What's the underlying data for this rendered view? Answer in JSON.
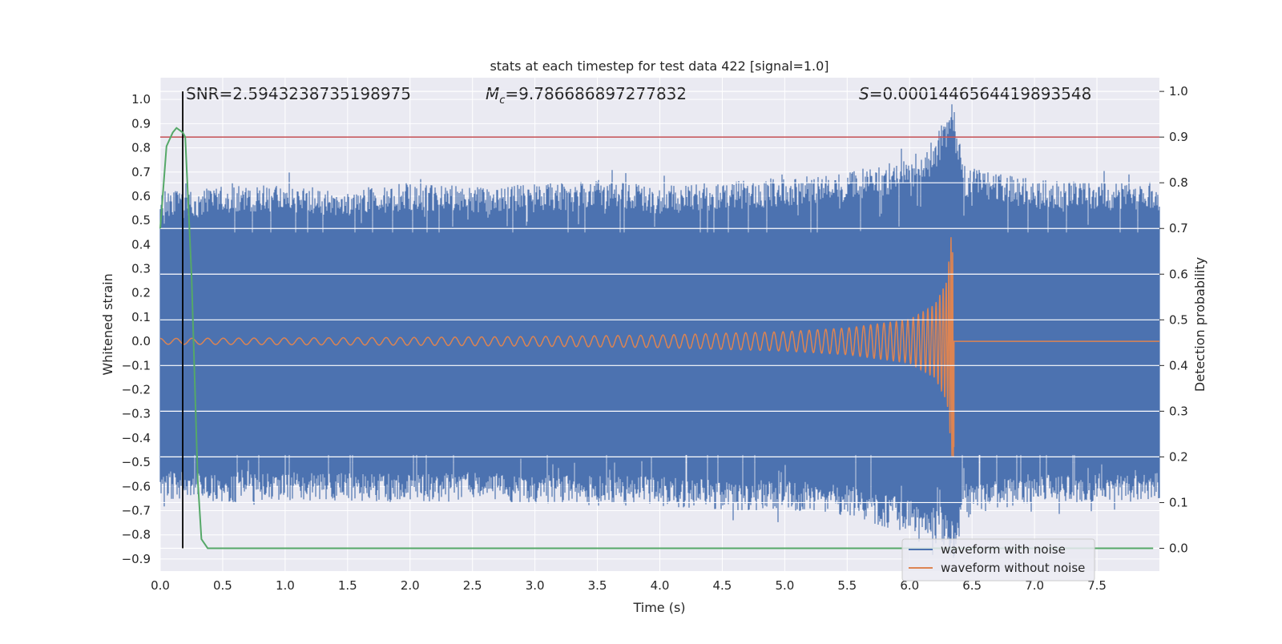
{
  "chart_data": {
    "type": "line",
    "title": "stats at each timestep for test data 422 [signal=1.0]",
    "xlabel": "Time (s)",
    "ylabel_left": "Whitened strain",
    "ylabel_right": "Detection probability",
    "xlim": [
      0.0,
      8.0
    ],
    "ylim_left": [
      -0.95,
      1.09
    ],
    "ylim_right": [
      -0.05,
      1.03
    ],
    "x_ticks": [
      "0.0",
      "0.5",
      "1.0",
      "1.5",
      "2.0",
      "2.5",
      "3.0",
      "3.5",
      "4.0",
      "4.5",
      "5.0",
      "5.5",
      "6.0",
      "6.5",
      "7.0",
      "7.5"
    ],
    "y_left_ticks": [
      "1.0",
      "0.9",
      "0.8",
      "0.7",
      "0.6",
      "0.5",
      "0.4",
      "0.3",
      "0.2",
      "0.1",
      "0.0",
      "−0.1",
      "−0.2",
      "−0.3",
      "−0.4",
      "−0.5",
      "−0.6",
      "−0.7",
      "−0.8",
      "−0.9"
    ],
    "y_right_ticks": [
      "1.0",
      "0.9",
      "0.8",
      "0.7",
      "0.6",
      "0.5",
      "0.4",
      "0.3",
      "0.2",
      "0.1",
      "0.0"
    ],
    "grid": true,
    "legend_position": "bottom-right",
    "annotations": {
      "snr": "SNR=2.5943238735198975",
      "mc": "=9.786686897277832",
      "mc_symbol": "M",
      "mc_sub": "c",
      "s": "=0.0001446564419893548",
      "s_symbol": "S"
    },
    "series": [
      {
        "name": "waveform with noise",
        "color": "#4c72b0",
        "axis": "left",
        "envelope_upper": [
          [
            0.0,
            0.62
          ],
          [
            0.5,
            0.64
          ],
          [
            1.0,
            0.65
          ],
          [
            1.5,
            0.63
          ],
          [
            2.0,
            0.66
          ],
          [
            2.5,
            0.64
          ],
          [
            3.0,
            0.65
          ],
          [
            3.5,
            0.67
          ],
          [
            4.0,
            0.64
          ],
          [
            4.5,
            0.66
          ],
          [
            5.0,
            0.68
          ],
          [
            5.5,
            0.7
          ],
          [
            6.0,
            0.76
          ],
          [
            6.2,
            0.84
          ],
          [
            6.35,
            1.0
          ],
          [
            6.45,
            0.72
          ],
          [
            7.0,
            0.67
          ],
          [
            7.5,
            0.66
          ],
          [
            8.0,
            0.66
          ]
        ],
        "envelope_lower": [
          [
            0.0,
            -0.65
          ],
          [
            0.5,
            -0.67
          ],
          [
            1.0,
            -0.66
          ],
          [
            1.5,
            -0.66
          ],
          [
            2.0,
            -0.67
          ],
          [
            2.5,
            -0.66
          ],
          [
            3.0,
            -0.67
          ],
          [
            3.5,
            -0.68
          ],
          [
            4.0,
            -0.68
          ],
          [
            4.5,
            -0.7
          ],
          [
            5.0,
            -0.7
          ],
          [
            5.5,
            -0.72
          ],
          [
            6.0,
            -0.8
          ],
          [
            6.2,
            -0.84
          ],
          [
            6.35,
            -0.9
          ],
          [
            6.45,
            -0.72
          ],
          [
            7.0,
            -0.67
          ],
          [
            7.5,
            -0.67
          ],
          [
            8.0,
            -0.66
          ]
        ]
      },
      {
        "name": "waveform without noise",
        "color": "#dd8452",
        "axis": "left",
        "envelope": [
          [
            0.0,
            0.012
          ],
          [
            1.0,
            0.014
          ],
          [
            2.0,
            0.016
          ],
          [
            3.0,
            0.02
          ],
          [
            4.0,
            0.026
          ],
          [
            5.0,
            0.04
          ],
          [
            5.5,
            0.055
          ],
          [
            6.0,
            0.09
          ],
          [
            6.2,
            0.15
          ],
          [
            6.3,
            0.25
          ],
          [
            6.35,
            0.54
          ],
          [
            6.36,
            0.0
          ],
          [
            8.0,
            0.0
          ]
        ],
        "min_dip": -0.45
      },
      {
        "name": "detection probability",
        "color": "#55a868",
        "axis": "right",
        "x": [
          0.0,
          0.05,
          0.1,
          0.13,
          0.18,
          0.2,
          0.25,
          0.3,
          0.33,
          0.38,
          0.5,
          1.0,
          2.0,
          3.0,
          4.0,
          5.0,
          6.0,
          7.0,
          7.95
        ],
        "y": [
          0.7,
          0.88,
          0.91,
          0.92,
          0.91,
          0.9,
          0.6,
          0.15,
          0.02,
          0.0,
          0.0,
          0.0,
          0.0,
          0.0,
          0.0,
          0.0,
          0.0,
          0.0,
          0.0
        ]
      }
    ],
    "threshold_line": {
      "y_right": 0.9,
      "color": "#c44e52"
    },
    "vertical_marker": {
      "x": 0.18,
      "color": "#000000"
    }
  }
}
